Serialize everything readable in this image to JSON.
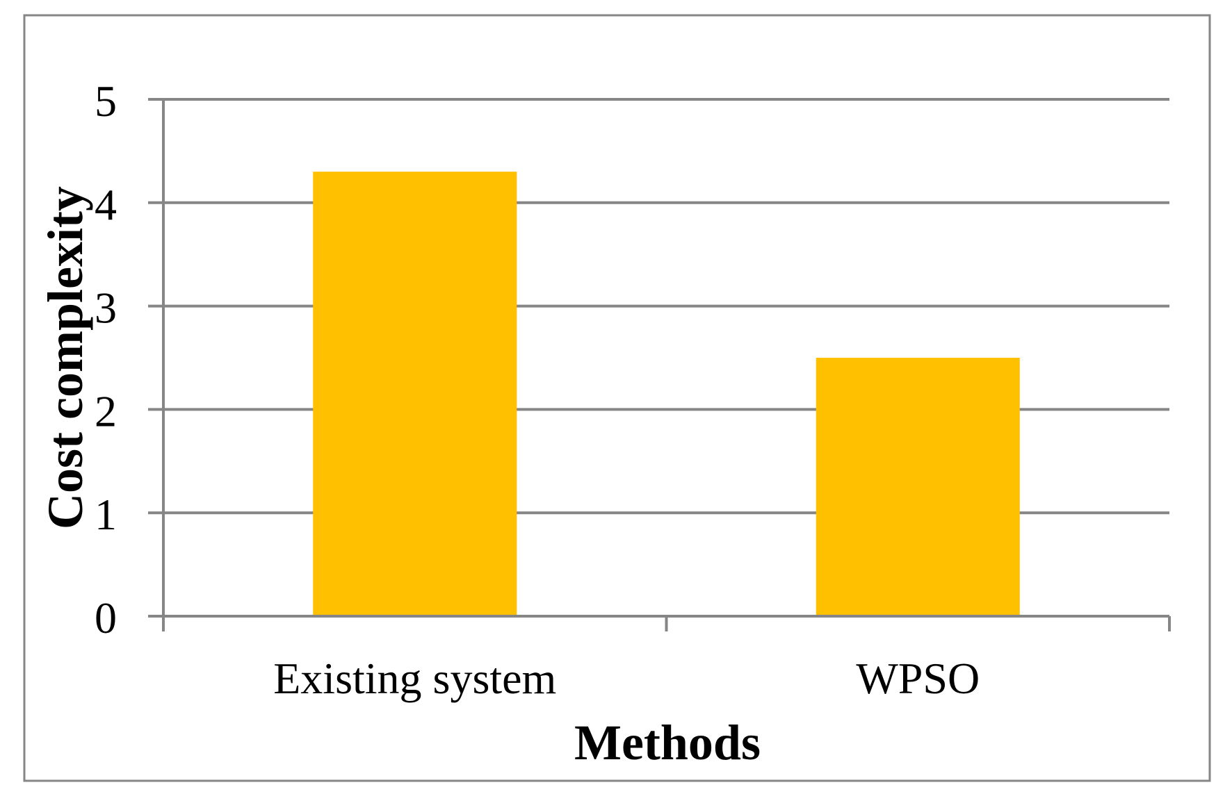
{
  "chart_data": {
    "type": "bar",
    "title": "",
    "xlabel": "Methods",
    "ylabel": "Cost complexity",
    "categories": [
      "Existing system",
      "WPSO"
    ],
    "values": [
      4.3,
      2.5
    ],
    "ylim": [
      0,
      5
    ],
    "yticks": [
      "0",
      "1",
      "2",
      "3",
      "4",
      "5"
    ],
    "grid": true,
    "legend": "none",
    "colors": {
      "bar": "#FFC000",
      "grid": "#868686",
      "axis": "#868686",
      "border": "#868686",
      "text": "#000000"
    }
  }
}
